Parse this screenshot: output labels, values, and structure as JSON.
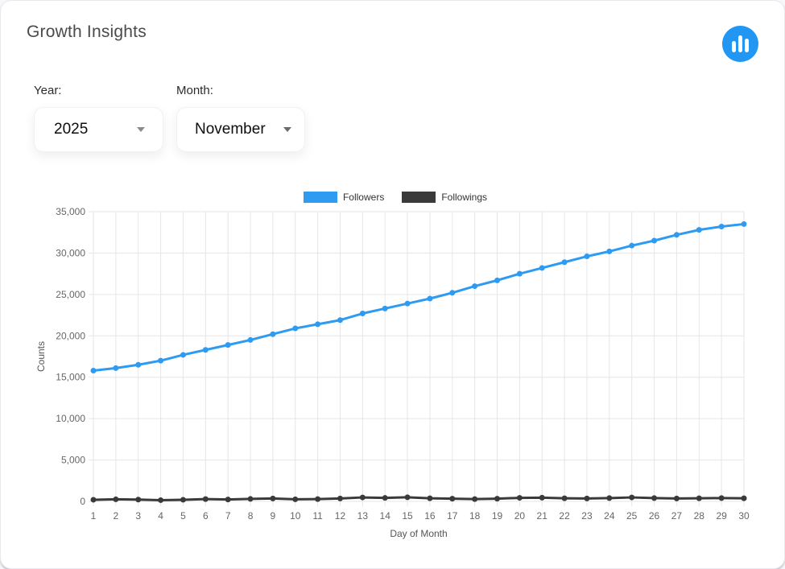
{
  "card": {
    "title": "Growth Insights"
  },
  "header_icon": {
    "name": "bar-chart",
    "background": "#2196F3",
    "bar_color": "#ffffff"
  },
  "filters": {
    "year_label": "Year:",
    "year_value": "2025",
    "month_label": "Month:",
    "month_value": "November"
  },
  "chart_data": {
    "type": "line",
    "title": "",
    "xlabel": "Day of Month",
    "ylabel": "Counts",
    "ylim": [
      0,
      35000
    ],
    "yticks": [
      0,
      5000,
      10000,
      15000,
      20000,
      25000,
      30000,
      35000
    ],
    "grid": true,
    "legend_position": "top",
    "x": [
      1,
      2,
      3,
      4,
      5,
      6,
      7,
      8,
      9,
      10,
      11,
      12,
      13,
      14,
      15,
      16,
      17,
      18,
      19,
      20,
      21,
      22,
      23,
      24,
      25,
      26,
      27,
      28,
      29,
      30
    ],
    "series": [
      {
        "name": "Followers",
        "color": "#2E9BF2",
        "values": [
          15800,
          16100,
          16500,
          17000,
          17700,
          18300,
          18900,
          19500,
          20200,
          20900,
          21400,
          21900,
          22700,
          23300,
          23900,
          24500,
          25200,
          26000,
          26700,
          27500,
          28200,
          28900,
          29600,
          30200,
          30900,
          31500,
          32200,
          32800,
          33200,
          33500
        ]
      },
      {
        "name": "Followings",
        "color": "#3A3A3A",
        "values": [
          200,
          250,
          220,
          150,
          200,
          280,
          230,
          300,
          350,
          250,
          280,
          350,
          480,
          420,
          500,
          380,
          330,
          280,
          330,
          430,
          450,
          380,
          350,
          400,
          480,
          400,
          350,
          380,
          400,
          380
        ]
      }
    ],
    "style": {
      "grid_color": "#e6e6ea",
      "tick_text_color": "#666666",
      "axis_title_color": "#555555",
      "line_width": 3,
      "marker_radius": 3.5
    }
  }
}
